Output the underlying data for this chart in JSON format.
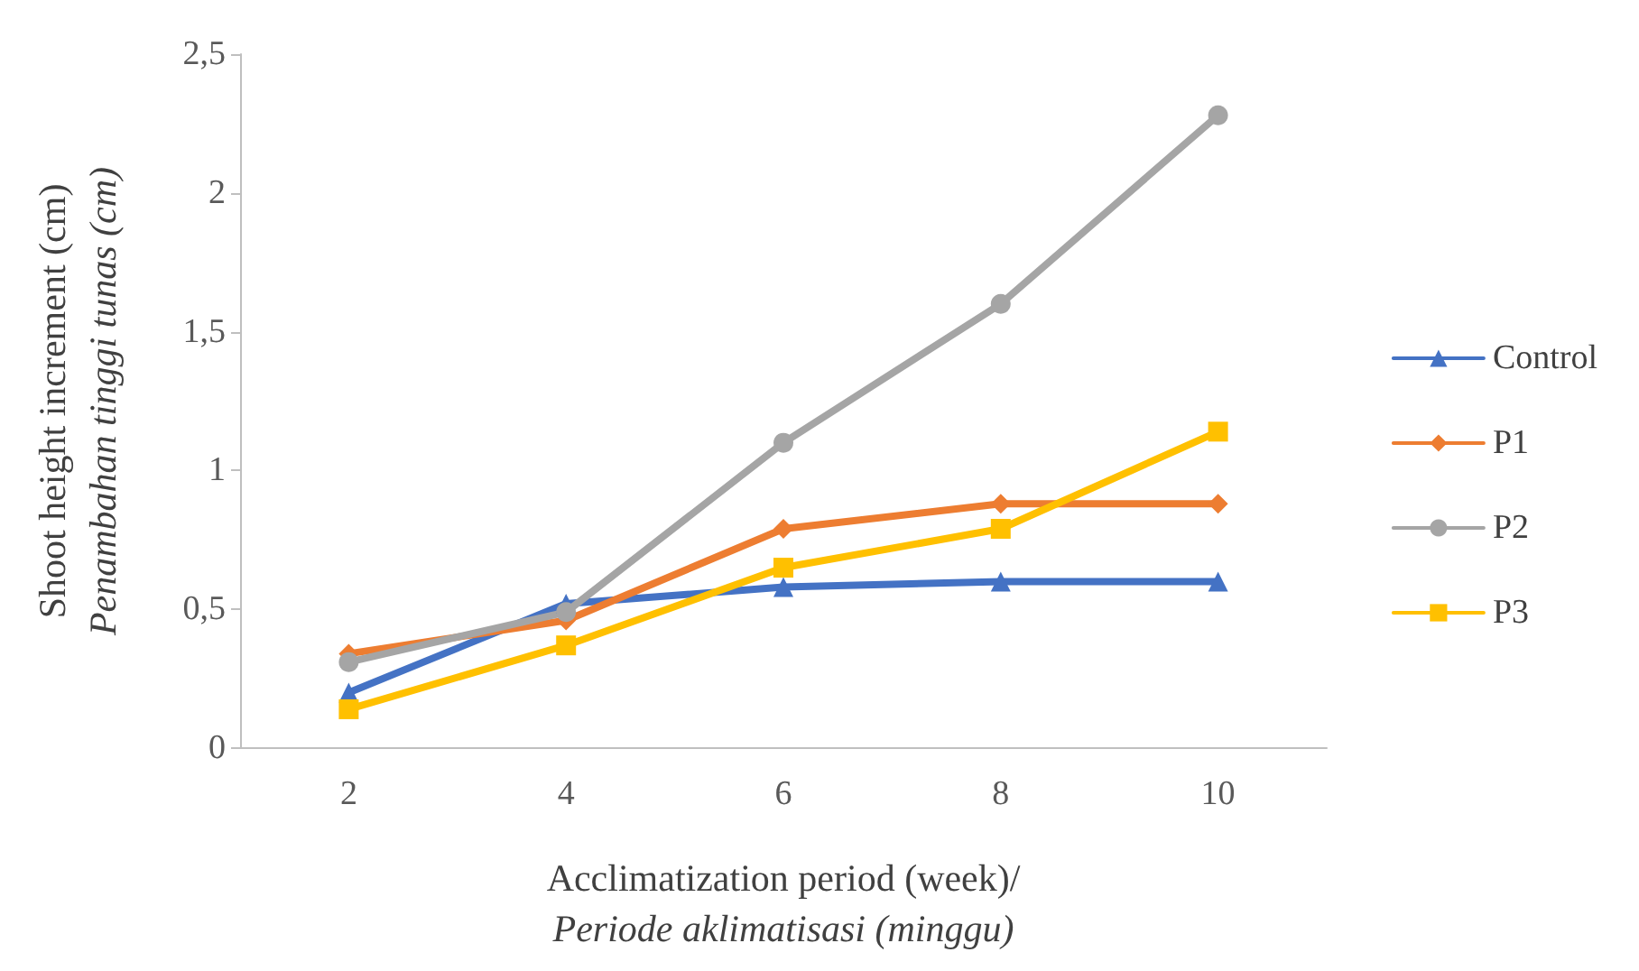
{
  "chart_data": {
    "type": "line",
    "xlabel": "Acclimatization period (week)/\nPeriode aklimatisasi (minggu)",
    "ylabel": "Shoot height increment (cm)\nPenambahan tinggi tunas (cm)",
    "categories": [
      "2",
      "4",
      "6",
      "8",
      "10"
    ],
    "series": [
      {
        "name": "Control",
        "color": "#4472c4",
        "marker": "triangle",
        "values": [
          0.2,
          0.52,
          0.58,
          0.6,
          0.6
        ]
      },
      {
        "name": "P1",
        "color": "#ed7d31",
        "marker": "diamond",
        "values": [
          0.34,
          0.46,
          0.79,
          0.88,
          0.88
        ]
      },
      {
        "name": "P2",
        "color": "#a5a5a5",
        "marker": "circle",
        "values": [
          0.31,
          0.49,
          1.1,
          1.6,
          2.28
        ]
      },
      {
        "name": "P3",
        "color": "#ffc000",
        "marker": "square",
        "values": [
          0.14,
          0.37,
          0.65,
          0.79,
          1.14
        ]
      }
    ],
    "ylim": [
      0,
      2.5
    ],
    "yticks": [
      0,
      {
        "value": 0.5,
        "label": "0,5"
      },
      1,
      {
        "value": 1.5,
        "label": "1,5"
      },
      2,
      {
        "value": 2.5,
        "label": "2,5"
      }
    ],
    "grid": false,
    "legend": "right",
    "line_style": "solid"
  }
}
